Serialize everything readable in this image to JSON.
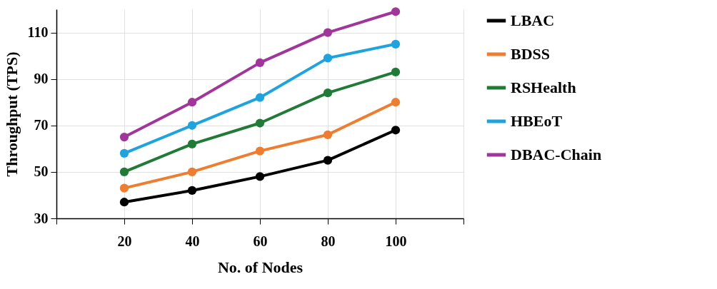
{
  "chart_data": {
    "type": "line",
    "xlabel": "No. of Nodes",
    "ylabel": "Throughput (TPS)",
    "x": [
      20,
      40,
      60,
      80,
      100
    ],
    "xlim": [
      0,
      120
    ],
    "xticks": [
      {
        "value": 0,
        "label": null
      },
      20,
      40,
      60,
      80,
      100,
      {
        "value": 120,
        "label": null
      }
    ],
    "ylim": [
      30,
      120
    ],
    "yticks": [
      30,
      50,
      70,
      90,
      110
    ],
    "grid": true,
    "legend": "right",
    "marker": "circle",
    "line_style": "solid",
    "series": [
      {
        "name": "LBAC",
        "color": "#000000",
        "values": [
          37,
          42,
          48,
          55,
          68
        ]
      },
      {
        "name": "BDSS",
        "color": "#ed7d31",
        "values": [
          43,
          50,
          59,
          66,
          80
        ]
      },
      {
        "name": "RSHealth",
        "color": "#217a35",
        "values": [
          50,
          62,
          71,
          84,
          93
        ]
      },
      {
        "name": "HBEoT",
        "color": "#1fa3dc",
        "values": [
          58,
          70,
          82,
          99,
          105
        ]
      },
      {
        "name": "DBAC-Chain",
        "color": "#a0359a",
        "values": [
          65,
          80,
          97,
          110,
          119
        ]
      }
    ]
  }
}
